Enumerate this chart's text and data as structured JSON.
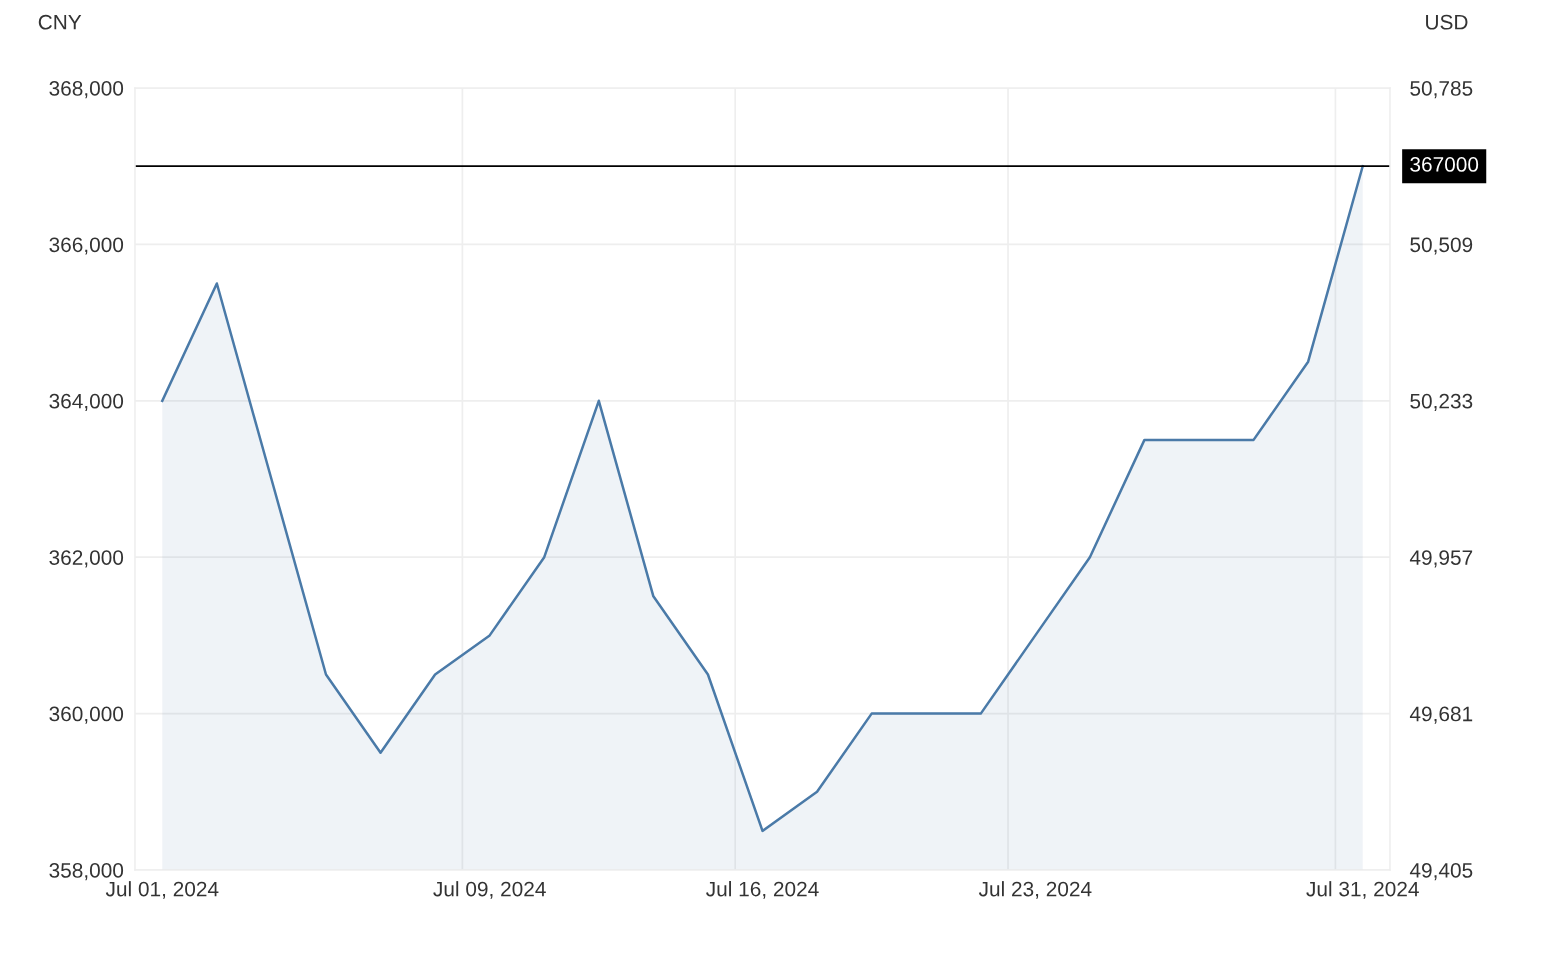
{
  "chart_data": {
    "type": "area",
    "ylabel": "CNY",
    "y2label": "USD",
    "categories": [
      "Jul 01, 2024",
      null,
      null,
      null,
      null,
      null,
      "Jul 09, 2024",
      null,
      null,
      null,
      null,
      "Jul 16, 2024",
      null,
      null,
      null,
      null,
      "Jul 23, 2024",
      null,
      null,
      null,
      null,
      null,
      "Jul 31, 2024"
    ],
    "series": [
      {
        "color": "#4a7aa8",
        "values": [
          364000,
          365500,
          363000,
          360500,
          359500,
          360500,
          361000,
          362000,
          364000,
          361500,
          360500,
          358500,
          359000,
          360000,
          360000,
          360000,
          361000,
          362000,
          363500,
          363500,
          363500,
          364500,
          367000
        ]
      }
    ],
    "ylim": [
      358000,
      368000
    ],
    "yticks": [
      {
        "value": 358000,
        "label": "358,000"
      },
      {
        "value": 360000,
        "label": "360,000"
      },
      {
        "value": 362000,
        "label": "362,000"
      },
      {
        "value": 364000,
        "label": "364,000"
      },
      {
        "value": 366000,
        "label": "366,000"
      },
      {
        "value": 368000,
        "label": "368,000"
      }
    ],
    "y2lim": [
      49405,
      50785
    ],
    "y2ticks": [
      {
        "value": 49405,
        "label": "49,405"
      },
      {
        "value": 49681,
        "label": "49,681"
      },
      {
        "value": 49957,
        "label": "49,957"
      },
      {
        "value": 50233,
        "label": "50,233"
      },
      {
        "value": 50509,
        "label": "50,509"
      },
      {
        "value": 50785,
        "label": "50,785"
      }
    ],
    "ref_lines": [
      {
        "axis": "y",
        "value": 367000,
        "label": "367000",
        "color": "#000000",
        "line_style": "solid"
      }
    ],
    "grid": true,
    "marker": "none",
    "line_style": "solid"
  }
}
